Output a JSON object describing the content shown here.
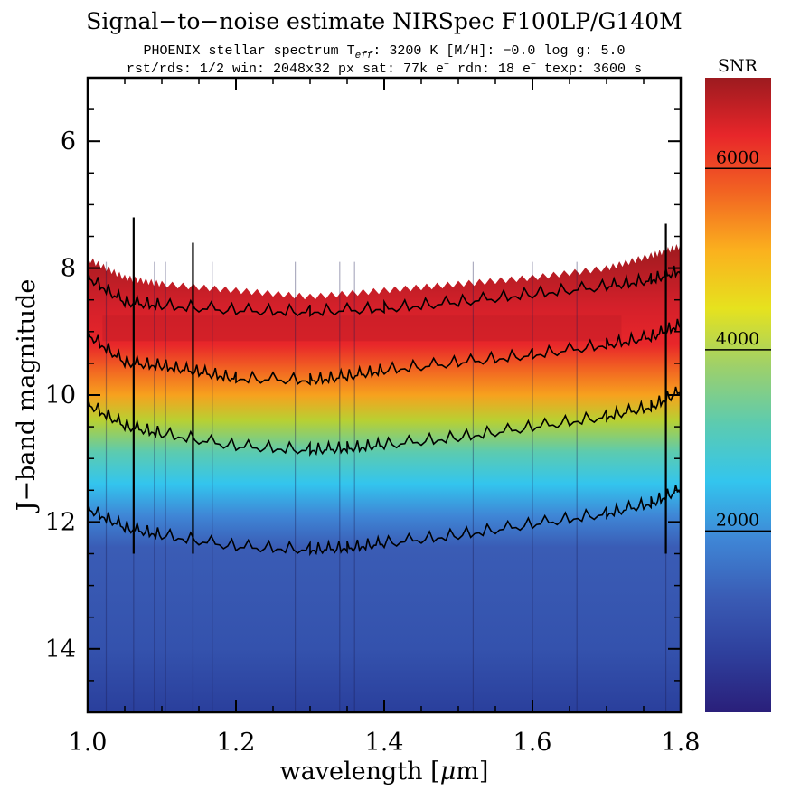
{
  "chart_data": {
    "type": "heatmap",
    "title": "Signal−to−noise estimate NIRSpec F100LP/G140M",
    "subtitle_line1": {
      "prefix": "PHOENIX stellar spectrum  T",
      "teff_sub": "eff",
      "suffix": ": 3200 K  [M/H]: −0.0  log g: 5.0"
    },
    "subtitle_line2": {
      "part1": "rst/rds: 1/2  win: 2048x32 px  sat: 77k e",
      "sup1": "−",
      "part2": "  rdn: 18 e",
      "sup2": "−",
      "part3": "  texp: 3600 s"
    },
    "xlabel": "wavelength [",
    "xlabel_mu": "μ",
    "xlabel_unit": "m]",
    "ylabel": "J−band magnitude",
    "xlim": [
      1.0,
      1.8
    ],
    "ylim": [
      15.0,
      5.0
    ],
    "x_ticks": [
      {
        "value": 1.0,
        "label": "1.0"
      },
      {
        "value": 1.2,
        "label": "1.2"
      },
      {
        "value": 1.4,
        "label": "1.4"
      },
      {
        "value": 1.6,
        "label": "1.6"
      },
      {
        "value": 1.8,
        "label": "1.8"
      }
    ],
    "y_ticks": [
      {
        "value": 6,
        "label": "6"
      },
      {
        "value": 8,
        "label": "8"
      },
      {
        "value": 10,
        "label": "10"
      },
      {
        "value": 12,
        "label": "12"
      },
      {
        "value": 14,
        "label": "14"
      }
    ],
    "colorbar": {
      "label": "SNR",
      "range": [
        0,
        7000
      ],
      "ticks": [
        {
          "value": 2000,
          "label": "2000"
        },
        {
          "value": 4000,
          "label": "4000"
        },
        {
          "value": 6000,
          "label": "6000"
        }
      ],
      "colors": [
        "#2a1f7a",
        "#2e3f9c",
        "#3a5cb5",
        "#3f86d6",
        "#33c5ee",
        "#5ccbb0",
        "#9ed06a",
        "#e6e21e",
        "#fbb11e",
        "#f26522",
        "#e8262a",
        "#9c1a1f"
      ]
    },
    "saturation_edge": [
      {
        "x": 1.0,
        "mag": 7.8
      },
      {
        "x": 1.05,
        "mag": 8.1
      },
      {
        "x": 1.1,
        "mag": 8.2
      },
      {
        "x": 1.2,
        "mag": 8.3
      },
      {
        "x": 1.3,
        "mag": 8.4
      },
      {
        "x": 1.4,
        "mag": 8.3
      },
      {
        "x": 1.5,
        "mag": 8.2
      },
      {
        "x": 1.6,
        "mag": 8.1
      },
      {
        "x": 1.7,
        "mag": 7.95
      },
      {
        "x": 1.76,
        "mag": 7.75
      },
      {
        "x": 1.8,
        "mag": 7.6
      }
    ],
    "contour_levels": [
      {
        "snr": 6000,
        "points": [
          [
            1.0,
            8.15
          ],
          [
            1.05,
            8.55
          ],
          [
            1.1,
            8.6
          ],
          [
            1.2,
            8.68
          ],
          [
            1.3,
            8.7
          ],
          [
            1.4,
            8.65
          ],
          [
            1.5,
            8.55
          ],
          [
            1.6,
            8.42
          ],
          [
            1.7,
            8.3
          ],
          [
            1.76,
            8.2
          ],
          [
            1.8,
            8.05
          ]
        ]
      },
      {
        "snr": 4000,
        "points": [
          [
            1.0,
            9.05
          ],
          [
            1.05,
            9.5
          ],
          [
            1.1,
            9.55
          ],
          [
            1.15,
            9.65
          ],
          [
            1.2,
            9.75
          ],
          [
            1.3,
            9.78
          ],
          [
            1.35,
            9.72
          ],
          [
            1.4,
            9.62
          ],
          [
            1.5,
            9.5
          ],
          [
            1.6,
            9.38
          ],
          [
            1.7,
            9.22
          ],
          [
            1.76,
            9.1
          ],
          [
            1.8,
            8.9
          ]
        ]
      },
      {
        "snr": 3000,
        "points": [
          [
            1.0,
            10.15
          ],
          [
            1.05,
            10.5
          ],
          [
            1.1,
            10.62
          ],
          [
            1.2,
            10.82
          ],
          [
            1.3,
            10.88
          ],
          [
            1.35,
            10.85
          ],
          [
            1.4,
            10.8
          ],
          [
            1.5,
            10.68
          ],
          [
            1.6,
            10.52
          ],
          [
            1.7,
            10.35
          ],
          [
            1.76,
            10.2
          ],
          [
            1.8,
            9.95
          ]
        ]
      },
      {
        "snr": 2000,
        "points": [
          [
            1.0,
            11.8
          ],
          [
            1.05,
            12.1
          ],
          [
            1.1,
            12.22
          ],
          [
            1.2,
            12.4
          ],
          [
            1.3,
            12.45
          ],
          [
            1.35,
            12.42
          ],
          [
            1.4,
            12.35
          ],
          [
            1.5,
            12.22
          ],
          [
            1.6,
            12.05
          ],
          [
            1.7,
            11.88
          ],
          [
            1.76,
            11.72
          ],
          [
            1.8,
            11.5
          ]
        ]
      }
    ],
    "absorption_features": [
      1.025,
      1.062,
      1.09,
      1.105,
      1.142,
      1.168,
      1.28,
      1.34,
      1.36,
      1.52,
      1.6,
      1.66,
      1.78
    ],
    "ripple_band": {
      "mag_top": 8.75,
      "mag_bottom": 9.15
    }
  }
}
